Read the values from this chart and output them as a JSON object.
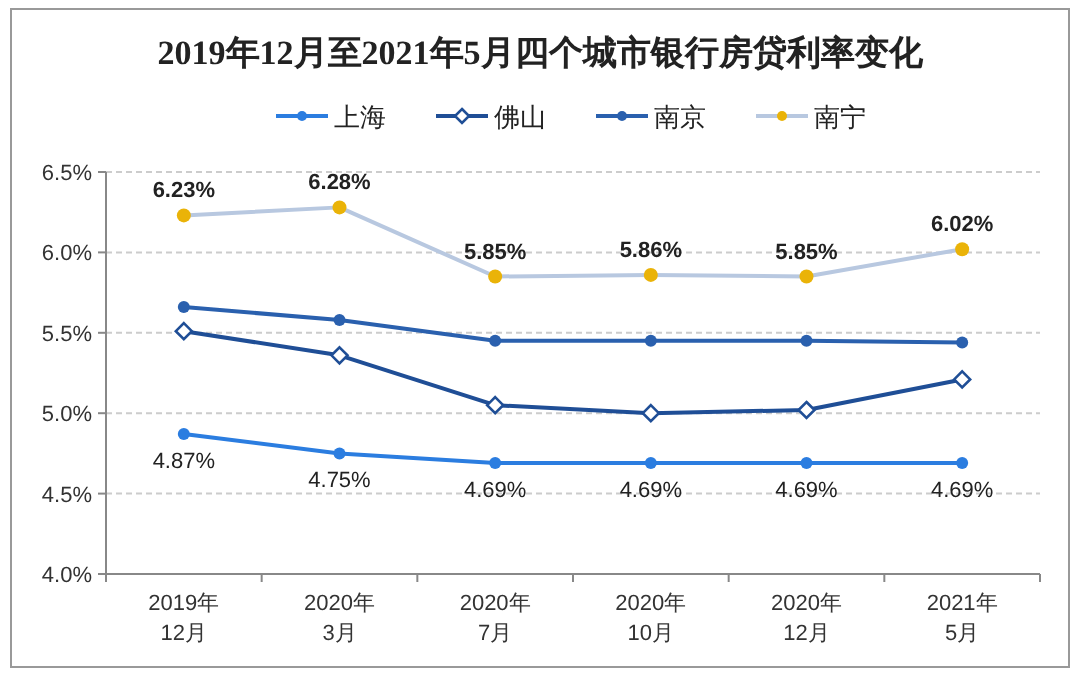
{
  "chart_data": {
    "type": "line",
    "title": "2019年12月至2021年5月四个城市银行房贷利率变化",
    "categories": [
      "2019年\n12月",
      "2020年\n3月",
      "2020年\n7月",
      "2020年\n10月",
      "2020年\n12月",
      "2021年\n5月"
    ],
    "series": [
      {
        "name": "上海",
        "color": "#2b7de0",
        "marker": "circle",
        "values": [
          4.87,
          4.75,
          4.69,
          4.69,
          4.69,
          4.69
        ],
        "value_labels": [
          "4.87%",
          "4.75%",
          "4.69%",
          "4.69%",
          "4.69%",
          "4.69%"
        ]
      },
      {
        "name": "佛山",
        "color": "#1f4e96",
        "marker": "diamond",
        "values": [
          5.51,
          5.36,
          5.05,
          5.0,
          5.02,
          5.21
        ]
      },
      {
        "name": "南京",
        "color": "#2a60ae",
        "marker": "circle",
        "values": [
          5.66,
          5.58,
          5.45,
          5.45,
          5.45,
          5.44
        ]
      },
      {
        "name": "南宁",
        "color": "#b8c8e0",
        "colors": [
          "#eab308",
          "#eab308",
          "#eab308",
          "#eab308",
          "#eab308",
          "#eab308"
        ],
        "marker": "circle",
        "values": [
          6.23,
          6.28,
          5.85,
          5.86,
          5.85,
          6.02
        ],
        "value_labels": [
          "6.23%",
          "6.28%",
          "5.85%",
          "5.86%",
          "5.85%",
          "6.02%"
        ]
      }
    ],
    "ylim": [
      4.0,
      6.5
    ],
    "yticks": [
      {
        "value": 4.0,
        "label": "4.0%"
      },
      {
        "value": 4.5,
        "label": "4.5%"
      },
      {
        "value": 5.0,
        "label": "5.0%"
      },
      {
        "value": 5.5,
        "label": "5.5%"
      },
      {
        "value": 6.0,
        "label": "6.0%"
      },
      {
        "value": 6.5,
        "label": "6.5%"
      }
    ],
    "grid": "y",
    "legend": "top"
  }
}
